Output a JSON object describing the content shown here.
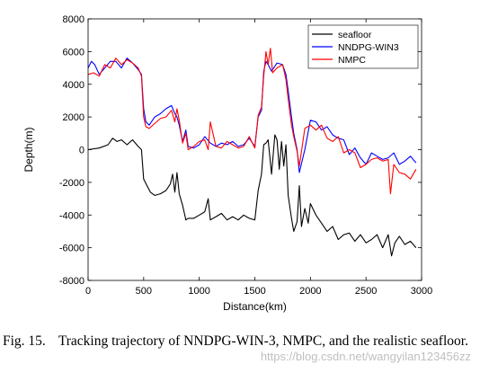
{
  "chart_data": {
    "type": "line",
    "title": "",
    "xlabel": "Distance(km)",
    "ylabel": "Depth(m)",
    "xlim": [
      0,
      3000
    ],
    "ylim": [
      -8000,
      8000
    ],
    "xticks": [
      "0",
      "500",
      "1000",
      "1500",
      "2000",
      "2500",
      "3000"
    ],
    "yticks": [
      "-8000",
      "-6000",
      "-4000",
      "-2000",
      "0",
      "2000",
      "4000",
      "6000",
      "8000"
    ],
    "grid": false,
    "legend_position": "top-right",
    "series": [
      {
        "name": "seafloor",
        "color": "#000000",
        "x": [
          0,
          100,
          180,
          220,
          260,
          300,
          350,
          400,
          450,
          480,
          500,
          530,
          560,
          600,
          650,
          700,
          740,
          760,
          780,
          800,
          820,
          850,
          880,
          900,
          950,
          1000,
          1050,
          1080,
          1100,
          1150,
          1200,
          1250,
          1300,
          1350,
          1400,
          1450,
          1500,
          1530,
          1560,
          1580,
          1600,
          1620,
          1650,
          1680,
          1700,
          1720,
          1740,
          1760,
          1780,
          1800,
          1830,
          1850,
          1880,
          1900,
          1920,
          1950,
          1980,
          2000,
          2050,
          2100,
          2150,
          2200,
          2250,
          2300,
          2350,
          2400,
          2450,
          2500,
          2550,
          2600,
          2650,
          2700,
          2730,
          2760,
          2800,
          2850,
          2900,
          2950
        ],
        "values": [
          0,
          100,
          300,
          700,
          500,
          600,
          300,
          600,
          200,
          0,
          -1800,
          -2200,
          -2600,
          -2800,
          -2700,
          -2500,
          -2100,
          -1500,
          -2600,
          -1400,
          -2700,
          -3400,
          -4300,
          -4200,
          -4200,
          -4000,
          -3800,
          -3000,
          -4300,
          -4100,
          -3900,
          -4300,
          -4100,
          -4300,
          -4000,
          -4200,
          -4300,
          -2500,
          -1500,
          300,
          400,
          600,
          -1500,
          900,
          600,
          -1200,
          500,
          -1000,
          300,
          -2800,
          -4200,
          -5000,
          -4400,
          -2200,
          -4700,
          -3600,
          -4500,
          -3300,
          -4000,
          -4500,
          -5000,
          -4700,
          -5500,
          -5200,
          -5100,
          -5600,
          -5200,
          -5700,
          -5500,
          -5200,
          -6000,
          -5200,
          -6500,
          -5700,
          -5300,
          -5800,
          -5600,
          -6000
        ]
      },
      {
        "name": "NNDPG-WIN3",
        "color": "#0000ff",
        "x": [
          0,
          30,
          60,
          100,
          150,
          200,
          250,
          300,
          350,
          400,
          450,
          480,
          500,
          520,
          550,
          600,
          650,
          700,
          750,
          780,
          800,
          820,
          850,
          880,
          900,
          950,
          1000,
          1050,
          1100,
          1150,
          1200,
          1250,
          1300,
          1350,
          1400,
          1450,
          1500,
          1530,
          1560,
          1580,
          1600,
          1620,
          1650,
          1700,
          1750,
          1780,
          1800,
          1830,
          1850,
          1880,
          1900,
          1950,
          2000,
          2050,
          2100,
          2150,
          2200,
          2250,
          2300,
          2350,
          2400,
          2450,
          2500,
          2550,
          2600,
          2650,
          2700,
          2750,
          2800,
          2850,
          2900,
          2950
        ],
        "values": [
          5000,
          5400,
          5200,
          4600,
          5000,
          5400,
          5400,
          5000,
          5600,
          5300,
          4900,
          4600,
          2500,
          1700,
          1500,
          2000,
          2200,
          2500,
          2700,
          2200,
          2000,
          1500,
          500,
          1200,
          200,
          100,
          300,
          800,
          400,
          200,
          400,
          300,
          500,
          200,
          300,
          700,
          200,
          2000,
          2400,
          4800,
          5400,
          5200,
          4800,
          5300,
          5200,
          4600,
          3600,
          2000,
          1000,
          0,
          -1400,
          0,
          1800,
          1700,
          1200,
          1400,
          900,
          700,
          600,
          -300,
          100,
          -500,
          -900,
          -200,
          -400,
          -600,
          -500,
          -200,
          -900,
          -700,
          -400,
          -800
        ]
      },
      {
        "name": "NMPC",
        "color": "#ff0000",
        "x": [
          0,
          50,
          100,
          150,
          200,
          250,
          300,
          350,
          400,
          450,
          480,
          500,
          520,
          550,
          600,
          650,
          700,
          750,
          780,
          800,
          820,
          850,
          880,
          900,
          950,
          1000,
          1050,
          1080,
          1100,
          1150,
          1200,
          1250,
          1300,
          1350,
          1400,
          1450,
          1500,
          1530,
          1560,
          1580,
          1600,
          1620,
          1640,
          1660,
          1700,
          1750,
          1780,
          1800,
          1830,
          1850,
          1880,
          1900,
          1950,
          2000,
          2050,
          2100,
          2150,
          2200,
          2250,
          2300,
          2350,
          2400,
          2450,
          2500,
          2550,
          2600,
          2650,
          2700,
          2720,
          2750,
          2800,
          2850,
          2900,
          2950
        ],
        "values": [
          4600,
          4700,
          4500,
          5200,
          5000,
          5600,
          5200,
          5500,
          5300,
          5000,
          4500,
          2000,
          1400,
          1300,
          1600,
          1900,
          2000,
          2400,
          1700,
          2500,
          1800,
          400,
          1000,
          0,
          200,
          500,
          600,
          0,
          1700,
          200,
          100,
          500,
          300,
          100,
          200,
          800,
          100,
          2100,
          2600,
          4500,
          6000,
          5200,
          6200,
          4700,
          5000,
          5200,
          4300,
          3100,
          1500,
          800,
          -100,
          -1000,
          1300,
          1500,
          1200,
          1500,
          700,
          500,
          800,
          -200,
          0,
          -200,
          -1100,
          -900,
          -600,
          -500,
          -700,
          -600,
          -2700,
          -900,
          -1400,
          -1500,
          -1800,
          -1200
        ]
      }
    ]
  },
  "caption": {
    "label": "Fig. 15.",
    "text": "Tracking trajectory of NNDPG-WIN-3, NMPC, and the realistic seafloor."
  },
  "watermark": "https://blog.csdn.net/wangyilan123456zz"
}
